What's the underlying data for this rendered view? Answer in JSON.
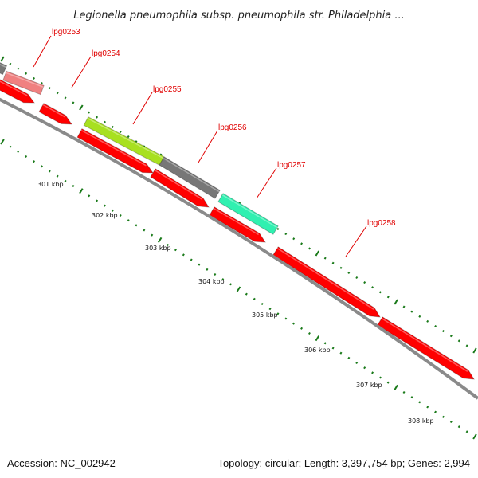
{
  "title": "Legionella pneumophila subsp. pneumophila str. Philadelphia ...",
  "footer": {
    "accession": "Accession: NC_002942",
    "summary": "Topology: circular; Length: 3,397,754 bp; Genes: 2,994"
  },
  "colors": {
    "background": "#ffffff",
    "backbone": "#8a8a8a",
    "forward_arrow": "#ff0000",
    "tick": "#1a7a1a",
    "label": "#e00000",
    "callout": "#e00000"
  },
  "scale_labels": [
    "301 kbp",
    "302 kbp",
    "303 kbp",
    "304 kbp",
    "305 kbp",
    "306 kbp",
    "307 kbp",
    "308 kbp"
  ],
  "genes": [
    {
      "name": "lpg0253",
      "color": "#f08080"
    },
    {
      "name": "lpg0254",
      "color": "#ff0000"
    },
    {
      "name": "lpg0255",
      "color": "#a8e020"
    },
    {
      "name": "lpg0256",
      "color": "#777777"
    },
    {
      "name": "lpg0257",
      "color": "#30f0b0"
    },
    {
      "name": "lpg0258",
      "color": "#ff0000"
    }
  ]
}
